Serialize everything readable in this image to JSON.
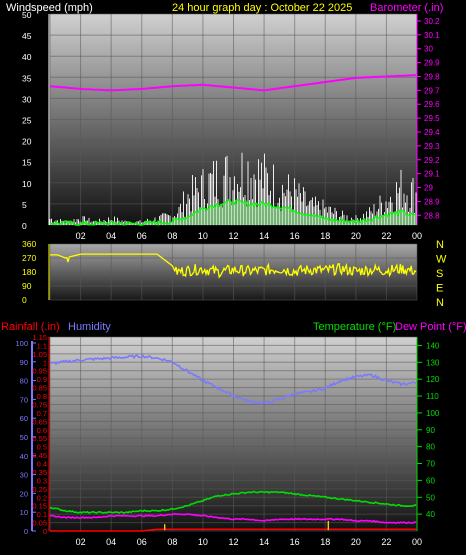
{
  "header": {
    "wind_label": "Windspeed (mph)",
    "title": "24 hour graph day : October 22 2025",
    "baro_label": "Barometer (.in)"
  },
  "lower_header": {
    "rain_label": "Rainfall (.in)",
    "humidity_label": "Humidity",
    "temp_label": "Temperature (°F)",
    "dew_label": "Dew Point (°F)"
  },
  "compass": [
    "N",
    "W",
    "S",
    "E",
    "N"
  ],
  "colors": {
    "wind": "#ffffff",
    "wind_avg": "#00ff00",
    "baro": "#ff00ff",
    "dir": "#ffff00",
    "humidity": "#7a7aff",
    "temp": "#00dd00",
    "dew": "#ff00ff",
    "rain": "#ff0000",
    "title": "#ffff00"
  },
  "chart_data": [
    {
      "type": "area",
      "name": "wind",
      "title": "24 hour graph day : October 22 2025",
      "x_ticks": [
        "02",
        "04",
        "06",
        "08",
        "10",
        "12",
        "14",
        "16",
        "18",
        "20",
        "22",
        "00"
      ],
      "y_left_ticks": [
        "0",
        "5",
        "10",
        "15",
        "20",
        "25",
        "30",
        "35",
        "40",
        "45",
        "50"
      ],
      "y_left_range": [
        0,
        50
      ],
      "y_right_ticks": [
        "28.8",
        "28.9",
        "29",
        "29.1",
        "29.2",
        "29.3",
        "29.4",
        "29.5",
        "29.6",
        "29.7",
        "29.8",
        "29.9",
        "30",
        "30.1",
        "30.2"
      ],
      "y_right_range": [
        28.73,
        30.25
      ],
      "series": [
        {
          "name": "Windspeed (mph)",
          "x": [
            0,
            1,
            2,
            3,
            4,
            5,
            6,
            7,
            8,
            8.5,
            9,
            10,
            11,
            12,
            13,
            14,
            15,
            16,
            17,
            18,
            19,
            20,
            21,
            22,
            23,
            24
          ],
          "values": [
            2,
            1,
            2,
            1,
            2,
            1,
            1,
            2,
            3,
            5,
            9,
            12,
            15,
            16,
            18,
            15,
            12,
            10,
            6,
            5,
            3,
            2,
            4,
            8,
            12,
            10
          ]
        },
        {
          "name": "Wind average",
          "x": [
            0,
            2,
            4,
            6,
            8,
            9,
            10,
            11,
            12,
            13,
            14,
            15,
            16,
            17,
            18,
            19,
            20,
            21,
            22,
            23,
            24
          ],
          "values": [
            0.5,
            0.3,
            0.4,
            0.3,
            0.8,
            2,
            4,
            5,
            5.5,
            5,
            5,
            4.5,
            3.5,
            2.5,
            1.5,
            1,
            0.8,
            1.5,
            2.5,
            3,
            2
          ]
        },
        {
          "name": "Barometer (.in)",
          "x": [
            0,
            2,
            4,
            6,
            8,
            10,
            12,
            14,
            16,
            18,
            20,
            22,
            24
          ],
          "values": [
            29.73,
            29.71,
            29.7,
            29.71,
            29.73,
            29.74,
            29.72,
            29.7,
            29.73,
            29.76,
            29.79,
            29.8,
            29.81
          ]
        }
      ]
    },
    {
      "type": "line",
      "name": "wind_direction",
      "y_left_ticks": [
        "0",
        "90",
        "180",
        "270",
        "360"
      ],
      "y_range": [
        0,
        360
      ],
      "series": [
        {
          "name": "Wind direction",
          "x": [
            0,
            0.5,
            1,
            2,
            3,
            4,
            5,
            6,
            7,
            8,
            8.2,
            9,
            10,
            11,
            12,
            13,
            14,
            15,
            16,
            17,
            18,
            19,
            20,
            21,
            22,
            23,
            24
          ],
          "values": [
            290,
            290,
            270,
            295,
            295,
            295,
            295,
            295,
            295,
            220,
            180,
            190,
            200,
            180,
            195,
            185,
            190,
            200,
            185,
            195,
            190,
            200,
            185,
            195,
            190,
            200,
            185
          ]
        }
      ]
    },
    {
      "type": "line",
      "name": "temp_humidity",
      "x_ticks": [
        "02",
        "04",
        "06",
        "08",
        "10",
        "12",
        "14",
        "16",
        "18",
        "20",
        "22",
        "00"
      ],
      "y_left_ticks": [
        "0",
        "0.05",
        "0.1",
        "0.15",
        "0.2",
        "0.25",
        "0.3",
        "0.35",
        "0.4",
        "0.45",
        "0.5",
        "0.55",
        "0.6",
        "0.65",
        "0.7",
        "0.75",
        "0.8",
        "0.85",
        "0.9",
        "0.95",
        "1",
        "1.05",
        "1.1",
        "1.15"
      ],
      "y_left_range": [
        0,
        1.15
      ],
      "y_hum_ticks": [
        "0",
        "10",
        "20",
        "30",
        "40",
        "50",
        "60",
        "70",
        "80",
        "90",
        "100"
      ],
      "y_hum_range": [
        0,
        100
      ],
      "y_right_ticks": [
        "40",
        "50",
        "60",
        "70",
        "80",
        "90",
        "100",
        "110",
        "120",
        "130",
        "140"
      ],
      "y_right_range": [
        30,
        145
      ],
      "series": [
        {
          "name": "Humidity",
          "x": [
            0,
            2,
            4,
            6,
            7,
            8,
            9,
            10,
            11,
            12,
            13,
            14,
            15,
            16,
            17,
            18,
            19,
            20,
            21,
            22,
            23,
            24
          ],
          "values": [
            89,
            91,
            92,
            93,
            92,
            90,
            85,
            80,
            76,
            72,
            69,
            68,
            70,
            73,
            74,
            76,
            80,
            82,
            83,
            80,
            78,
            79
          ]
        },
        {
          "name": "Temperature (°F)",
          "x": [
            0,
            1,
            2,
            3,
            4,
            5,
            6,
            7,
            8,
            9,
            10,
            11,
            12,
            13,
            14,
            15,
            16,
            17,
            18,
            19,
            20,
            21,
            22,
            23,
            24
          ],
          "values": [
            44,
            42,
            41,
            41,
            41,
            41,
            42,
            42,
            43,
            45,
            48,
            51,
            52,
            53,
            53,
            53,
            52,
            51,
            50,
            49,
            48,
            47,
            46,
            45,
            45
          ]
        },
        {
          "name": "Dew Point (°F)",
          "x": [
            0,
            1,
            2,
            3,
            4,
            5,
            6,
            7,
            8,
            9,
            10,
            11,
            12,
            13,
            14,
            15,
            16,
            17,
            18,
            19,
            20,
            21,
            22,
            23,
            24
          ],
          "values": [
            39,
            38,
            38,
            38,
            39,
            39,
            39,
            39,
            40,
            40,
            39,
            38,
            37,
            37,
            36,
            37,
            37,
            37,
            37,
            37,
            36,
            36,
            35,
            35,
            35
          ]
        },
        {
          "name": "Rainfall (.in)",
          "x": [
            0,
            2,
            4,
            6,
            7,
            8,
            10,
            12,
            14,
            16,
            18,
            20,
            22,
            24
          ],
          "values": [
            0,
            0,
            0,
            0,
            0.01,
            0.01,
            0.01,
            0.01,
            0.01,
            0.01,
            0.01,
            0.01,
            0.01,
            0.01
          ]
        },
        {
          "name": "Rain rate",
          "x": [
            7.5,
            18.2
          ],
          "values": [
            0.04,
            0.06
          ]
        }
      ]
    }
  ]
}
